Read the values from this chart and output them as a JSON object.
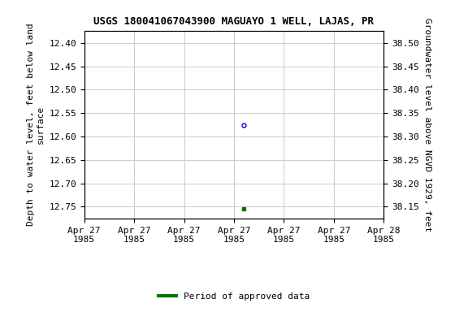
{
  "title": "USGS 180041067043900 MAGUAYO 1 WELL, LAJAS, PR",
  "ylabel_left": "Depth to water level, feet below land\nsurface",
  "ylabel_right": "Groundwater level above NGVD 1929, feet",
  "ylim_left": [
    12.775,
    12.375
  ],
  "ylim_right": [
    38.125,
    38.525
  ],
  "yticks_left": [
    12.4,
    12.45,
    12.5,
    12.55,
    12.6,
    12.65,
    12.7,
    12.75
  ],
  "yticks_right": [
    38.5,
    38.45,
    38.4,
    38.35,
    38.3,
    38.25,
    38.2,
    38.15
  ],
  "xlim": [
    0,
    6
  ],
  "xtick_positions": [
    0,
    1,
    2,
    3,
    4,
    5,
    6
  ],
  "xtick_labels": [
    "Apr 27\n1985",
    "Apr 27\n1985",
    "Apr 27\n1985",
    "Apr 27\n1985",
    "Apr 27\n1985",
    "Apr 27\n1985",
    "Apr 28\n1985"
  ],
  "grid_color": "#cccccc",
  "background_color": "#ffffff",
  "title_fontsize": 9,
  "axis_label_fontsize": 8,
  "tick_fontsize": 8,
  "point_x": 3.2,
  "point_y_depth": 12.575,
  "point_color": "#0000cc",
  "point_marker": "o",
  "point_size": 3.5,
  "green_point_x": 3.2,
  "green_point_y_depth": 12.755,
  "green_point_color": "#007700",
  "green_point_marker": "s",
  "green_point_size": 3.5,
  "legend_label": "Period of approved data",
  "legend_color": "#007700"
}
